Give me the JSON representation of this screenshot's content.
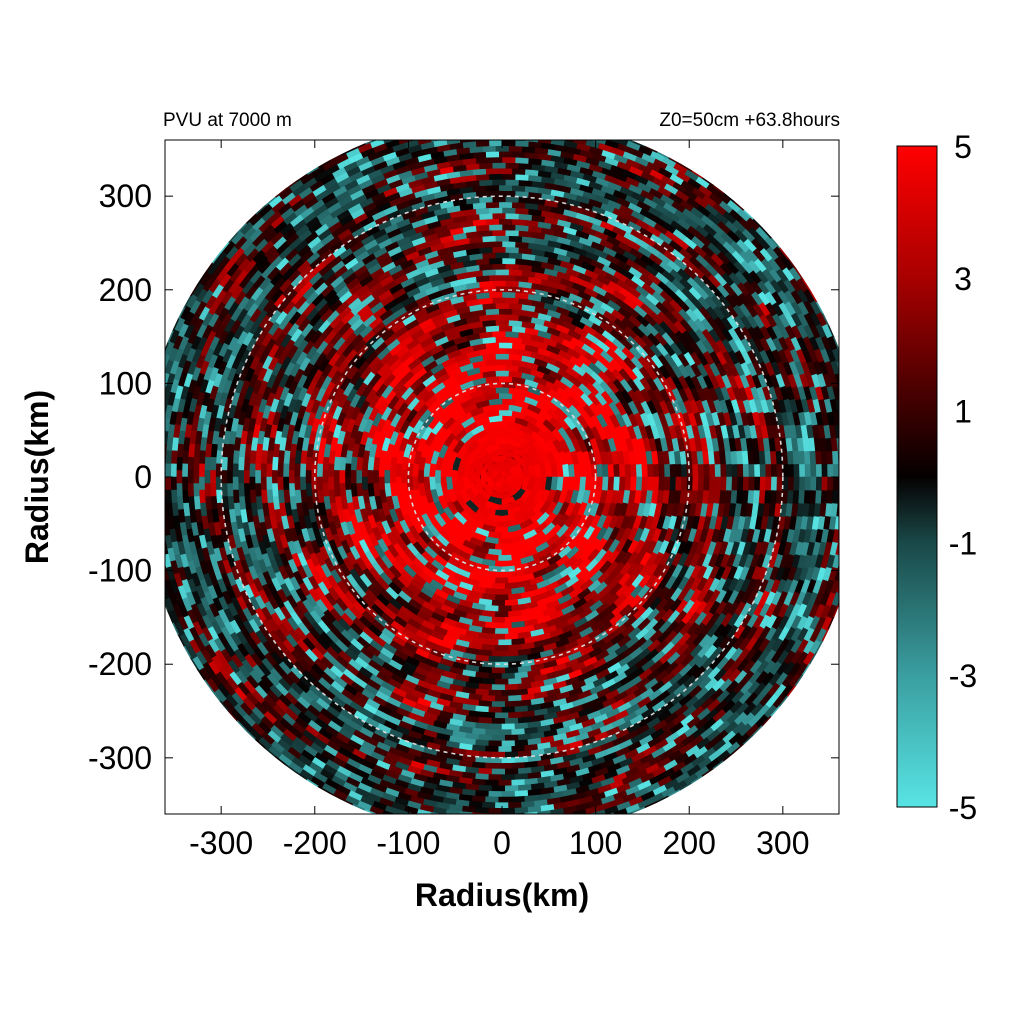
{
  "chart_data": {
    "type": "heatmap",
    "title_left": "PVU at  7000 m",
    "title_right": "Z0=50cm  +63.8hours",
    "xlabel": "Radius(km)",
    "ylabel": "Radius(km)",
    "xlim": [
      -360,
      360
    ],
    "ylim": [
      -360,
      360
    ],
    "xticks": [
      -300,
      -200,
      -100,
      0,
      100,
      200,
      300
    ],
    "yticks": [
      -300,
      -200,
      -100,
      0,
      100,
      200,
      300
    ],
    "xtick_labels": [
      "-300",
      "-200",
      "-100",
      "0",
      "100",
      "200",
      "300"
    ],
    "ytick_labels": [
      "-300",
      "-200",
      "-100",
      "0",
      "100",
      "200",
      "300"
    ],
    "domain_radius_km": 385,
    "reference_circles_km": [
      100,
      200,
      300
    ],
    "colorbar": {
      "range": [
        -5,
        5
      ],
      "ticks": [
        5,
        3,
        1,
        -1,
        -3,
        -5
      ],
      "tick_labels": [
        "5",
        "3",
        "1",
        "-1",
        "-3",
        "-5"
      ],
      "colors": [
        {
          "value": -5,
          "color": "#58e4e4"
        },
        {
          "value": -3,
          "color": "#3a9ea0"
        },
        {
          "value": -1,
          "color": "#1a4848"
        },
        {
          "value": 0,
          "color": "#050000"
        },
        {
          "value": 1,
          "color": "#3a0000"
        },
        {
          "value": 3,
          "color": "#a80000"
        },
        {
          "value": 5,
          "color": "#ff0000"
        }
      ]
    },
    "field_description": {
      "core_radius_km": 55,
      "core_value": 5
    },
    "grid": false
  }
}
